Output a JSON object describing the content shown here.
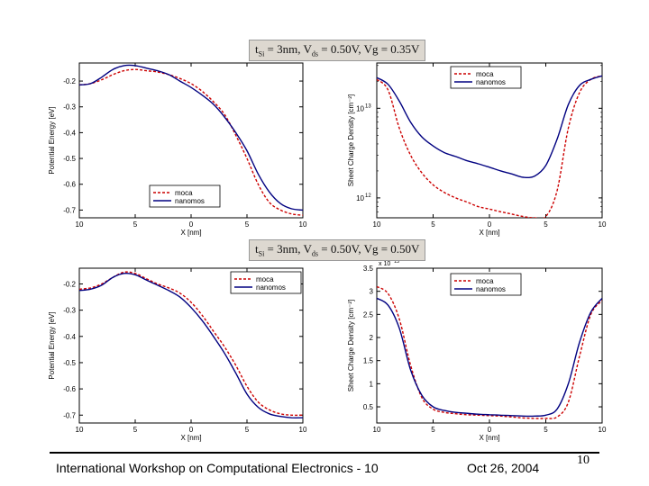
{
  "conditions": [
    {
      "tsi": "t",
      "tsi_sub": "Si",
      "rest1": " = 3nm, V",
      "vds_sub": "ds",
      "rest2": " = 0.50V, Vg = 0.35V"
    },
    {
      "tsi": "t",
      "tsi_sub": "Si",
      "rest1": " = 3nm, V",
      "vds_sub": "ds",
      "rest2": " = 0.50V, Vg = 0.50V"
    }
  ],
  "footer": {
    "workshop": "International Workshop on Computational Electronics - 10",
    "date": "Oct 26, 2004",
    "page": "10"
  },
  "colors": {
    "moca": "#cc0000",
    "nanomos": "#000080"
  },
  "chart_data": [
    {
      "type": "line",
      "xlabel": "X [nm]",
      "ylabel": "Potential Energy [eV]",
      "xlim": [
        -10,
        10
      ],
      "ylim": [
        -0.73,
        -0.13
      ],
      "xticks": [
        -10,
        -5,
        0,
        5,
        10
      ],
      "xticklabels": [
        "10",
        "5",
        "0",
        "5",
        "10"
      ],
      "yticks": [
        -0.7,
        -0.6,
        -0.5,
        -0.4,
        -0.3,
        -0.2
      ],
      "yticklabels": [
        "-0.7",
        "-0.6",
        "-0.5",
        "-0.4",
        "-0.3",
        "-0.2"
      ],
      "legend_position": "bottom-left",
      "series": [
        {
          "name": "moca",
          "style": "dashed",
          "x": [
            -10,
            -9,
            -8,
            -7,
            -6,
            -5,
            -4,
            -3,
            -2,
            -1,
            0,
            1,
            2,
            3,
            4,
            5,
            6,
            7,
            8,
            9,
            10
          ],
          "y": [
            -0.215,
            -0.21,
            -0.195,
            -0.175,
            -0.16,
            -0.155,
            -0.16,
            -0.165,
            -0.175,
            -0.19,
            -0.21,
            -0.24,
            -0.28,
            -0.33,
            -0.41,
            -0.5,
            -0.6,
            -0.67,
            -0.7,
            -0.715,
            -0.72
          ]
        },
        {
          "name": "nanomos",
          "style": "solid",
          "x": [
            -10,
            -9,
            -8,
            -7,
            -6,
            -5,
            -4,
            -3,
            -2,
            -1,
            0,
            1,
            2,
            3,
            4,
            5,
            6,
            7,
            8,
            9,
            10
          ],
          "y": [
            -0.215,
            -0.21,
            -0.185,
            -0.155,
            -0.14,
            -0.14,
            -0.15,
            -0.16,
            -0.175,
            -0.2,
            -0.225,
            -0.255,
            -0.29,
            -0.34,
            -0.4,
            -0.47,
            -0.56,
            -0.63,
            -0.675,
            -0.695,
            -0.7
          ]
        }
      ]
    },
    {
      "type": "line",
      "xlabel": "X [nm]",
      "ylabel": "Sheet Charge Density [cm⁻²]",
      "yscale": "log",
      "xlim": [
        -10,
        10
      ],
      "ylim": [
        600000000000.0,
        32000000000000.0
      ],
      "xticks": [
        -10,
        -5,
        0,
        5,
        10
      ],
      "xticklabels": [
        "10",
        "5",
        "0",
        "5",
        "10"
      ],
      "yticks": [
        1000000000000.0,
        10000000000000.0
      ],
      "ytick_base": "10",
      "ytick_exps": [
        "12",
        "13"
      ],
      "legend_position": "top-right",
      "series": [
        {
          "name": "moca",
          "style": "dashed",
          "x": [
            -10,
            -9,
            -8,
            -7,
            -6,
            -5,
            -4,
            -3,
            -2,
            -1,
            0,
            1,
            2,
            3,
            4,
            5,
            6,
            7,
            8,
            9,
            10
          ],
          "y": [
            21000000000000.0,
            16000000000000.0,
            6000000000000.0,
            3000000000000.0,
            1900000000000.0,
            1400000000000.0,
            1150000000000.0,
            1000000000000.0,
            900000000000.0,
            800000000000.0,
            750000000000.0,
            700000000000.0,
            660000000000.0,
            620000000000.0,
            600000000000.0,
            620000000000.0,
            1200000000000.0,
            6000000000000.0,
            15000000000000.0,
            21000000000000.0,
            23000000000000.0
          ]
        },
        {
          "name": "nanomos",
          "style": "solid",
          "x": [
            -10,
            -9,
            -8,
            -7,
            -6,
            -5,
            -4,
            -3,
            -2,
            -1,
            0,
            1,
            2,
            3,
            4,
            5,
            6,
            7,
            8,
            9,
            10
          ],
          "y": [
            22000000000000.0,
            18500000000000.0,
            12000000000000.0,
            7000000000000.0,
            4800000000000.0,
            3800000000000.0,
            3200000000000.0,
            2900000000000.0,
            2600000000000.0,
            2400000000000.0,
            2200000000000.0,
            2000000000000.0,
            1850000000000.0,
            1700000000000.0,
            1750000000000.0,
            2300000000000.0,
            4500000000000.0,
            11000000000000.0,
            18000000000000.0,
            21000000000000.0,
            23000000000000.0
          ]
        }
      ]
    },
    {
      "type": "line",
      "xlabel": "X [nm]",
      "ylabel": "Potential Energy [eV]",
      "xlim": [
        -10,
        10
      ],
      "ylim": [
        -0.73,
        -0.14
      ],
      "xticks": [
        -10,
        -5,
        0,
        5,
        10
      ],
      "xticklabels": [
        "10",
        "5",
        "0",
        "5",
        "10"
      ],
      "yticks": [
        -0.7,
        -0.6,
        -0.5,
        -0.4,
        -0.3,
        -0.2
      ],
      "yticklabels": [
        "-0.7",
        "-0.6",
        "-0.5",
        "-0.4",
        "-0.3",
        "-0.2"
      ],
      "legend_position": "top-right",
      "series": [
        {
          "name": "moca",
          "style": "dashed",
          "x": [
            -10,
            -9,
            -8,
            -7,
            -6,
            -5,
            -4,
            -3,
            -2,
            -1,
            0,
            1,
            2,
            3,
            4,
            5,
            6,
            7,
            8,
            9,
            10
          ],
          "y": [
            -0.22,
            -0.215,
            -0.2,
            -0.175,
            -0.155,
            -0.16,
            -0.18,
            -0.2,
            -0.215,
            -0.235,
            -0.27,
            -0.32,
            -0.38,
            -0.44,
            -0.51,
            -0.59,
            -0.65,
            -0.68,
            -0.695,
            -0.7,
            -0.7
          ]
        },
        {
          "name": "nanomos",
          "style": "solid",
          "x": [
            -10,
            -9,
            -8,
            -7,
            -6,
            -5,
            -4,
            -3,
            -2,
            -1,
            0,
            1,
            2,
            3,
            4,
            5,
            6,
            7,
            8,
            9,
            10
          ],
          "y": [
            -0.225,
            -0.22,
            -0.205,
            -0.175,
            -0.16,
            -0.165,
            -0.185,
            -0.205,
            -0.225,
            -0.25,
            -0.29,
            -0.34,
            -0.4,
            -0.465,
            -0.54,
            -0.62,
            -0.67,
            -0.695,
            -0.705,
            -0.71,
            -0.71
          ]
        }
      ]
    },
    {
      "type": "line",
      "xlabel": "X [nm]",
      "ylabel": "Sheet Charge Density [cm⁻²]",
      "xlim": [
        -10,
        10
      ],
      "ylim": [
        1500000000000.0,
        35000000000000.0
      ],
      "xticks": [
        -10,
        -5,
        0,
        5,
        10
      ],
      "xticklabels": [
        "10",
        "5",
        "0",
        "5",
        "10"
      ],
      "yticks": [
        5000000000000.0,
        10000000000000.0,
        15000000000000.0,
        20000000000000.0,
        25000000000000.0,
        30000000000000.0,
        35000000000000.0
      ],
      "yticklabels": [
        "0.5",
        "1",
        "1.5",
        "2",
        "2.5",
        "3",
        "3.5"
      ],
      "yexponent": "x 10",
      "yexponent_power": "13",
      "legend_position": "top-right",
      "series": [
        {
          "name": "moca",
          "style": "dashed",
          "x": [
            -10,
            -9,
            -8,
            -7,
            -6,
            -5,
            -4,
            -3,
            -2,
            -1,
            0,
            1,
            2,
            3,
            4,
            5,
            6,
            7,
            8,
            9,
            10
          ],
          "y": [
            31000000000000.0,
            29500000000000.0,
            24000000000000.0,
            14000000000000.0,
            7000000000000.0,
            4500000000000.0,
            3800000000000.0,
            3500000000000.0,
            3300000000000.0,
            3200000000000.0,
            3100000000000.0,
            3000000000000.0,
            2800000000000.0,
            2600000000000.0,
            2500000000000.0,
            2500000000000.0,
            2800000000000.0,
            6000000000000.0,
            16000000000000.0,
            25000000000000.0,
            28000000000000.0
          ]
        },
        {
          "name": "nanomos",
          "style": "solid",
          "x": [
            -10,
            -9,
            -8,
            -7,
            -6,
            -5,
            -4,
            -3,
            -2,
            -1,
            0,
            1,
            2,
            3,
            4,
            5,
            6,
            7,
            8,
            9,
            10
          ],
          "y": [
            28500000000000.0,
            27000000000000.0,
            22000000000000.0,
            13000000000000.0,
            7500000000000.0,
            5000000000000.0,
            4200000000000.0,
            3800000000000.0,
            3600000000000.0,
            3400000000000.0,
            3300000000000.0,
            3200000000000.0,
            3100000000000.0,
            3000000000000.0,
            3000000000000.0,
            3200000000000.0,
            4500000000000.0,
            10000000000000.0,
            19000000000000.0,
            25500000000000.0,
            28500000000000.0
          ]
        }
      ]
    }
  ]
}
